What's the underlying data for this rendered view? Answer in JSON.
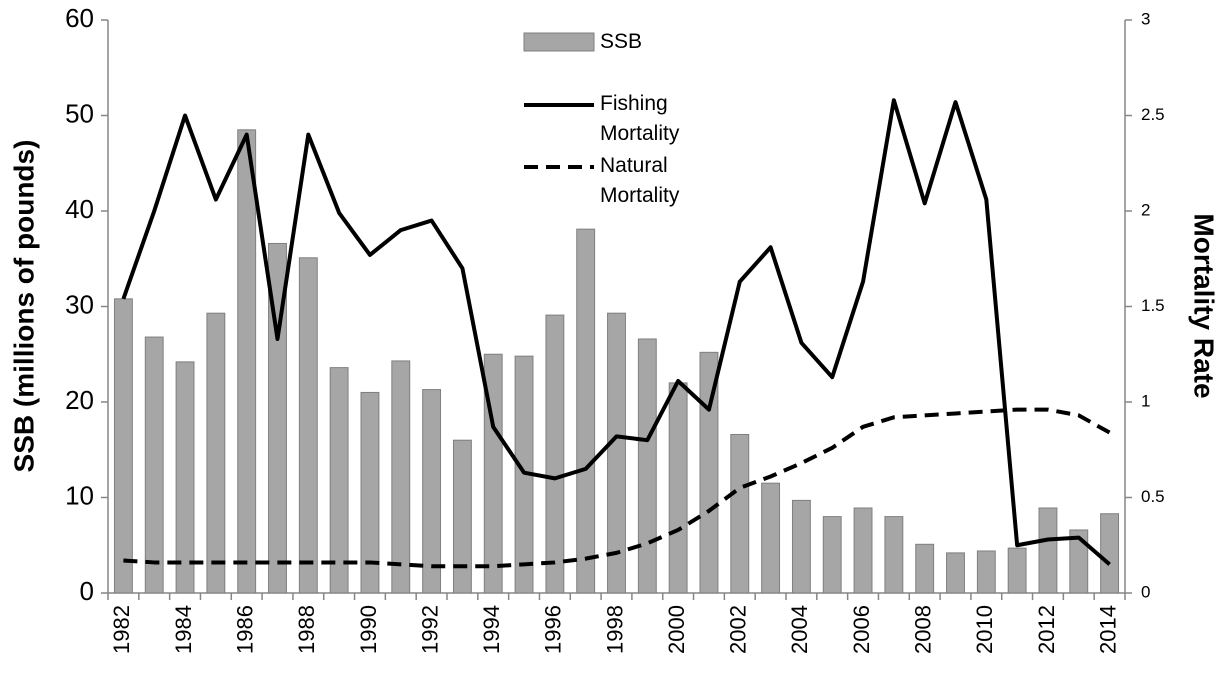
{
  "chart_data": {
    "type": "bar",
    "categories": [
      "1982",
      null,
      "1984",
      null,
      "1986",
      null,
      "1988",
      null,
      "1990",
      null,
      "1992",
      null,
      "1994",
      null,
      "1996",
      null,
      "1998",
      null,
      "2000",
      null,
      "2002",
      null,
      "2004",
      null,
      "2006",
      null,
      "2008",
      null,
      "2010",
      null,
      "2012",
      null,
      "2014"
    ],
    "series": [
      {
        "name": "SSB",
        "type": "bar",
        "axis": "y",
        "color": "#a6a6a6",
        "values": [
          30.8,
          26.8,
          24.2,
          29.3,
          48.5,
          36.6,
          35.1,
          23.6,
          21,
          24.3,
          21.3,
          16,
          25,
          24.8,
          29.1,
          38.1,
          29.3,
          26.6,
          22,
          25.2,
          16.6,
          11.5,
          9.7,
          8,
          8.9,
          8,
          5.1,
          4.2,
          4.4,
          4.7,
          8.9,
          6.6,
          8.3
        ]
      },
      {
        "name": "Fishing Mortality",
        "type": "line",
        "axis": "y2",
        "color": "#000000",
        "line_style": "solid",
        "values": [
          1.54,
          2.0,
          2.5,
          2.06,
          2.4,
          1.33,
          2.4,
          1.99,
          1.77,
          1.9,
          1.95,
          1.7,
          0.87,
          0.63,
          0.6,
          0.65,
          0.82,
          0.8,
          1.11,
          0.96,
          1.63,
          1.81,
          1.31,
          1.13,
          1.63,
          2.58,
          2.04,
          2.57,
          2.06,
          0.25,
          0.28,
          0.29,
          0.15
        ]
      },
      {
        "name": "Natural Mortality",
        "type": "line",
        "axis": "y2",
        "color": "#000000",
        "line_style": "dashed",
        "values": [
          0.17,
          0.16,
          0.16,
          0.16,
          0.16,
          0.16,
          0.16,
          0.16,
          0.16,
          0.15,
          0.14,
          0.14,
          0.14,
          0.15,
          0.16,
          0.18,
          0.21,
          0.26,
          0.33,
          0.43,
          0.55,
          0.61,
          0.68,
          0.76,
          0.87,
          0.92,
          0.93,
          0.94,
          0.95,
          0.96,
          0.96,
          0.93,
          0.84
        ]
      }
    ],
    "y_label": "SSB (millions of pounds)",
    "y2_label": "Mortality Rate",
    "ylim": [
      0,
      60
    ],
    "yticks": [
      0,
      10,
      20,
      30,
      40,
      50,
      60
    ],
    "y2lim": [
      0,
      3
    ],
    "y2ticks": [
      0,
      0.5,
      1,
      1.5,
      2,
      2.5,
      3
    ],
    "grid": false,
    "legend": "top-center"
  }
}
